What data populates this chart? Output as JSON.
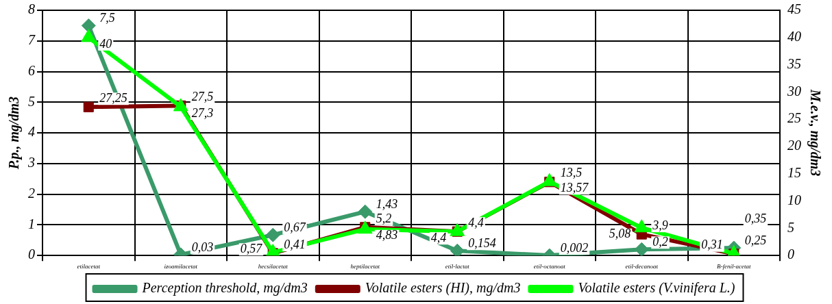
{
  "chart_data": {
    "type": "line",
    "ylabel": "P.p., mg/dm3",
    "y2label": "M.e.v., mg/dm3",
    "categories": [
      "etilacetat",
      "izoamilacetat",
      "hecsilacetat",
      "heptilacetat",
      "etil-lactat",
      "etil-octanoat",
      "etil-decanoat",
      "B-fenil-acetat"
    ],
    "series": [
      {
        "name": "Perception threshold, mg/dm3",
        "color": "#3a9a6a",
        "marker": "diamond",
        "values": [
          7.5,
          0.03,
          0.67,
          1.43,
          0.154,
          0.002,
          0.2,
          0.25
        ],
        "value_labels": [
          "7,5",
          "0,03",
          "0,67",
          "1,43",
          "0,154",
          "0,002",
          "0,2",
          "0,25"
        ]
      },
      {
        "name": "Volatile esters (HI), mg/dm3",
        "color": "#800000",
        "marker": "square",
        "axis": "y2",
        "values": [
          27.25,
          27.5,
          0.41,
          5.2,
          4.4,
          13.5,
          3.9,
          0.31
        ],
        "value_labels": [
          "27,25",
          "27,5",
          "0,41",
          "5,2",
          "4,4",
          "13,5",
          "3,9",
          "0,31"
        ]
      },
      {
        "name": "Volatile esters (V.vinifera L.)",
        "color": "#00ff00",
        "marker": "triangle",
        "axis": "y2",
        "values": [
          40,
          27.3,
          0.57,
          4.83,
          4.4,
          13.57,
          5.08,
          0.35
        ],
        "value_labels": [
          "40",
          "27,3",
          "0,57",
          "4,83",
          "4,4",
          "13,57",
          "5,08",
          "0,35"
        ]
      }
    ],
    "ylim": [
      0,
      8
    ],
    "yticks": [
      0,
      1,
      2,
      3,
      4,
      5,
      6,
      7,
      8
    ],
    "y2lim": [
      0,
      45
    ],
    "y2ticks": [
      0,
      5,
      10,
      15,
      20,
      25,
      30,
      35,
      40,
      45
    ],
    "grid": true,
    "legend": "bottom",
    "line_style": "solid"
  }
}
